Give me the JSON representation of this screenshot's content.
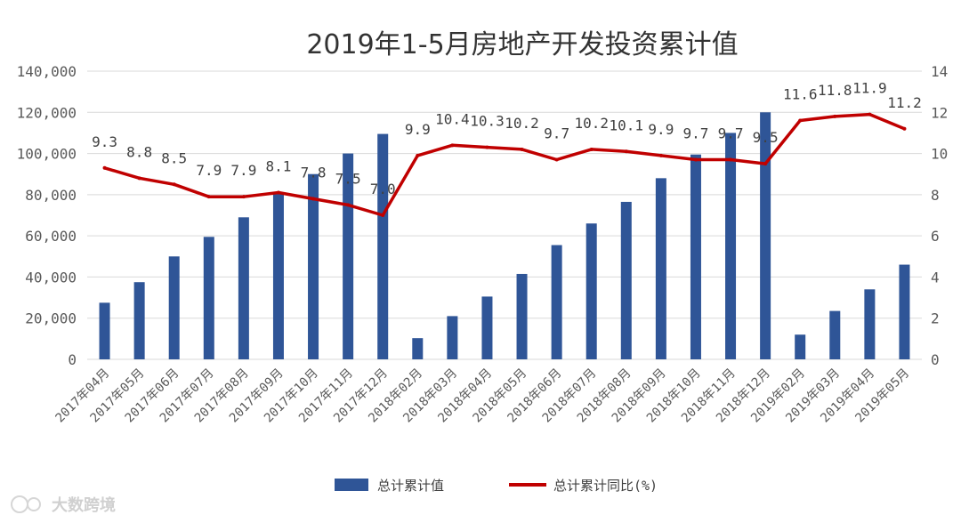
{
  "chart_data": {
    "type": "bar+line",
    "title": "2019年1-5月房地产开发投资累计值",
    "categories": [
      "2017年04月",
      "2017年05月",
      "2017年06月",
      "2017年07月",
      "2017年08月",
      "2017年09月",
      "2017年10月",
      "2017年11月",
      "2017年12月",
      "2018年02月",
      "2018年03月",
      "2018年04月",
      "2018年05月",
      "2018年06月",
      "2018年07月",
      "2018年08月",
      "2018年09月",
      "2018年10月",
      "2018年11月",
      "2018年12月",
      "2019年02月",
      "2019年03月",
      "2019年04月",
      "2019年05月"
    ],
    "series": [
      {
        "name": "总计累计值",
        "type": "bar",
        "axis": "left",
        "color": "#2f5597",
        "values": [
          27500,
          37500,
          50000,
          59500,
          69000,
          80500,
          90000,
          100000,
          109500,
          10300,
          21000,
          30500,
          41500,
          55500,
          66000,
          76500,
          88000,
          99500,
          110000,
          120000,
          12000,
          23500,
          34000,
          46000
        ]
      },
      {
        "name": "总计累计同比(%)",
        "type": "line",
        "axis": "right",
        "color": "#c00000",
        "values": [
          9.3,
          8.8,
          8.5,
          7.9,
          7.9,
          8.1,
          7.8,
          7.5,
          7.0,
          9.9,
          10.4,
          10.3,
          10.2,
          9.7,
          10.2,
          10.1,
          9.9,
          9.7,
          9.7,
          9.5,
          11.6,
          11.8,
          11.9,
          11.2
        ],
        "labels": [
          "9.3",
          "8.8",
          "8.5",
          "7.9",
          "7.9",
          "8.1",
          "7.8",
          "7.5",
          "7.0",
          "9.9",
          "10.4",
          "10.3",
          "10.2",
          "9.7",
          "10.2",
          "10.1",
          "9.9",
          "9.7",
          "9.7",
          "9.5",
          "11.6",
          "11.8",
          "11.9",
          "11.2"
        ]
      }
    ],
    "y_left": {
      "ylim": [
        0,
        140000
      ],
      "ticks": [
        "0",
        "20,000",
        "40,000",
        "60,000",
        "80,000",
        "100,000",
        "120,000",
        "140,000"
      ]
    },
    "y_right": {
      "ylim": [
        0,
        14
      ],
      "ticks": [
        "0",
        "2",
        "4",
        "6",
        "8",
        "10",
        "12",
        "14"
      ]
    },
    "grid": true,
    "legend_placement": "bottom-center"
  },
  "watermark": {
    "text": "大数跨境"
  }
}
